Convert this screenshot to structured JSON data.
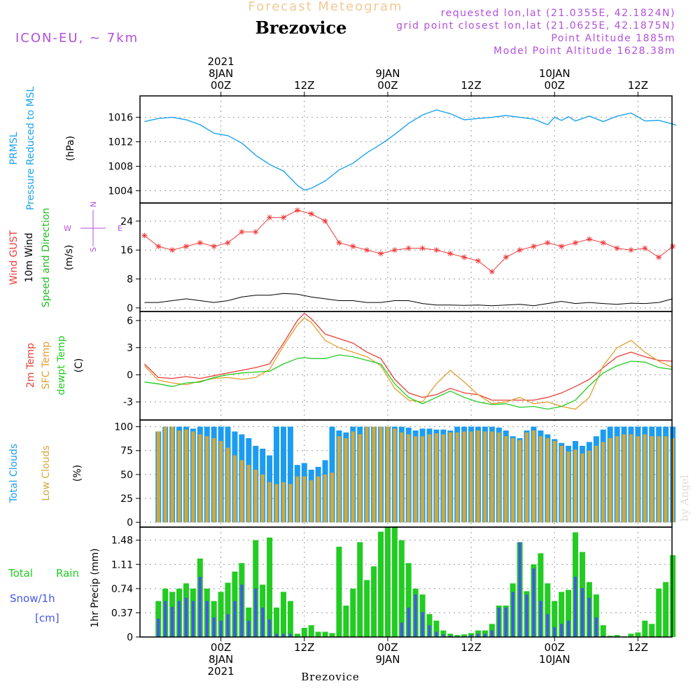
{
  "header": {
    "title": "Forecast Meteogram",
    "location": "Brezovice",
    "model": "ICON-EU, ~ 7km",
    "requested": "requested lon,lat (21.0355E, 42.1824N)",
    "grid_point": "grid point closest lon,lat (21.0625E, 42.1875N)",
    "point_altitude": "Point Altitude 1885m",
    "model_altitude": "Model Point Altitude 1628.38m",
    "footer": "Brezovice",
    "watermark": "by Angel"
  },
  "colors": {
    "pressure": "#1ca3ec",
    "gust": "#ee3b3b",
    "wind": "#000000",
    "direction_label": "#22bb22",
    "compass": "#b44fdc",
    "temp2m": "#e8403a",
    "sfc_temp": "#e0a030",
    "dewpoint": "#22cc22",
    "total_clouds": "#1c9cf0",
    "low_clouds": "#d4a838",
    "rain": "#22cc22",
    "snow": "#4455ee",
    "header_title": "#f2c994",
    "header_info": "#b44fdc"
  },
  "time_axis": {
    "top": [
      {
        "t": 0,
        "lines": [
          "2021",
          "8JAN",
          "00Z"
        ]
      },
      {
        "t": 12,
        "lines": [
          "12Z"
        ]
      },
      {
        "t": 24,
        "lines": [
          "9JAN",
          "00Z"
        ]
      },
      {
        "t": 36,
        "lines": [
          "12Z"
        ]
      },
      {
        "t": 48,
        "lines": [
          "10JAN",
          "00Z"
        ]
      },
      {
        "t": 60,
        "lines": [
          "12Z"
        ]
      }
    ],
    "bottom": [
      {
        "t": 0,
        "lines": [
          "00Z",
          "8JAN",
          "2021"
        ]
      },
      {
        "t": 12,
        "lines": [
          "12Z"
        ]
      },
      {
        "t": 24,
        "lines": [
          "00Z",
          "9JAN"
        ]
      },
      {
        "t": 36,
        "lines": [
          "12Z"
        ]
      },
      {
        "t": 48,
        "lines": [
          "00Z",
          "10JAN"
        ]
      },
      {
        "t": 60,
        "lines": [
          "12Z"
        ]
      }
    ]
  },
  "chart_data": [
    {
      "type": "line",
      "panel": "pressure",
      "labels": [
        "PRMSL",
        "Pressure Reduced to MSL",
        "(hPa)"
      ],
      "ylim": [
        1002,
        1019.5
      ],
      "yticks": [
        "1004",
        "1008",
        "1012",
        "1016"
      ],
      "x": [
        -11,
        -9,
        -7,
        -5,
        -3,
        -1,
        1,
        3,
        5,
        7,
        9,
        11,
        12,
        13,
        15,
        17,
        19,
        21,
        23,
        25,
        27,
        29,
        31,
        33,
        35,
        37,
        39,
        41,
        43,
        45,
        47,
        48,
        49,
        50,
        51,
        53,
        55,
        57,
        59,
        61,
        63,
        65,
        65.5
      ],
      "series": [
        {
          "values": [
            1015.3,
            1015.8,
            1016.0,
            1015.6,
            1014.8,
            1013.4,
            1013.0,
            1011.8,
            1009.8,
            1008.3,
            1007.2,
            1004.9,
            1004.1,
            1004.4,
            1005.6,
            1007.4,
            1008.5,
            1010.2,
            1011.6,
            1013.2,
            1015.0,
            1016.4,
            1017.2,
            1016.6,
            1015.6,
            1015.8,
            1016.0,
            1016.3,
            1016.0,
            1015.7,
            1014.8,
            1016.0,
            1015.5,
            1016.1,
            1015.4,
            1016.2,
            1015.3,
            1016.2,
            1016.7,
            1015.4,
            1015.5,
            1014.9,
            1014.7
          ]
        }
      ]
    },
    {
      "type": "line",
      "panel": "wind",
      "labels": [
        "Wind GUST",
        "10m Wind",
        "Speed and Direction",
        "(m/s)"
      ],
      "compass": [
        "N",
        "E",
        "S",
        "W"
      ],
      "ylim": [
        -1,
        29
      ],
      "yticks": [
        "0",
        "8",
        "16",
        "24"
      ],
      "x": [
        -11,
        -9,
        -7,
        -5,
        -3,
        -1,
        1,
        3,
        5,
        7,
        9,
        11,
        13,
        15,
        17,
        19,
        21,
        23,
        25,
        27,
        29,
        31,
        33,
        35,
        37,
        39,
        41,
        43,
        45,
        47,
        49,
        51,
        53,
        55,
        57,
        59,
        61,
        63,
        65
      ],
      "series": [
        {
          "name": "Wind GUST",
          "values": [
            20,
            17,
            16,
            17,
            18,
            17,
            18,
            21,
            21,
            25,
            25,
            27,
            26,
            24,
            18,
            17,
            16,
            15,
            16,
            16.5,
            16.5,
            16,
            15,
            14,
            13,
            10,
            14,
            16,
            17,
            18,
            17,
            18,
            19,
            18,
            16.5,
            16,
            16.5,
            14,
            17
          ]
        },
        {
          "name": "10m Wind",
          "values": [
            1.5,
            1.5,
            2,
            2.5,
            2,
            1.5,
            2,
            3,
            3.5,
            3.5,
            4,
            3.8,
            3,
            2.5,
            2,
            2,
            1.5,
            1.5,
            2,
            2,
            1.2,
            0.8,
            0.8,
            0.7,
            0.8,
            0.6,
            0.8,
            1,
            0.6,
            1.2,
            1.8,
            1.2,
            1.5,
            1.2,
            1,
            1.3,
            1.2,
            1.5,
            2.5
          ]
        }
      ]
    },
    {
      "type": "line",
      "panel": "temperature",
      "labels": [
        "2m Temp",
        "SFC Temp",
        "dewpt Temp",
        "(C)"
      ],
      "ylim": [
        -5,
        7
      ],
      "yticks": [
        "-3",
        "0",
        "3",
        "6"
      ],
      "x": [
        -11,
        -9,
        -7,
        -5,
        -3,
        -1,
        1,
        3,
        5,
        7,
        9,
        11,
        12,
        13,
        15,
        17,
        19,
        21,
        23,
        25,
        27,
        29,
        31,
        33,
        35,
        37,
        39,
        41,
        43,
        45,
        47,
        49,
        51,
        53,
        55,
        57,
        59,
        61,
        63,
        65
      ],
      "series": [
        {
          "name": "2m Temp",
          "values": [
            1.2,
            -0.3,
            -0.4,
            -0.2,
            -0.4,
            -0.1,
            0.2,
            0.5,
            0.8,
            1.2,
            3.5,
            6.0,
            6.8,
            6.2,
            4.5,
            4.0,
            3.5,
            2.5,
            1.8,
            -0.5,
            -2.0,
            -2.5,
            -2.2,
            -1.5,
            -2.0,
            -2.2,
            -2.8,
            -2.8,
            -2.8,
            -2.8,
            -2.5,
            -2.0,
            -1.3,
            -0.5,
            0.8,
            2.0,
            2.5,
            2.0,
            1.6,
            1.5
          ]
        },
        {
          "name": "SFC Temp",
          "values": [
            1.0,
            -0.6,
            -0.9,
            -1.1,
            -0.7,
            -0.4,
            -0.3,
            -0.5,
            -0.3,
            0.6,
            3.2,
            5.5,
            6.3,
            5.8,
            3.8,
            3.0,
            2.5,
            2.0,
            1.0,
            -1.5,
            -2.8,
            -3.0,
            -1.0,
            0.5,
            -0.8,
            -2.2,
            -3.2,
            -3.0,
            -2.5,
            -3.2,
            -3.0,
            -3.5,
            -3.8,
            -2.5,
            1.0,
            3.0,
            3.8,
            2.5,
            1.5,
            0.8
          ]
        },
        {
          "name": "dewpt Temp",
          "values": [
            -0.8,
            -1.0,
            -1.3,
            -0.9,
            -0.8,
            -0.3,
            0.0,
            0.2,
            0.3,
            0.4,
            1.2,
            1.8,
            1.9,
            1.8,
            1.8,
            2.2,
            2.0,
            1.6,
            1.2,
            -1.0,
            -2.5,
            -3.2,
            -2.5,
            -1.8,
            -2.5,
            -3.0,
            -3.3,
            -3.2,
            -3.6,
            -3.5,
            -3.8,
            -3.5,
            -2.8,
            -1.2,
            0.2,
            1.0,
            1.5,
            1.4,
            0.8,
            0.6
          ]
        }
      ]
    },
    {
      "type": "bar",
      "panel": "clouds",
      "labels": [
        "Total Clouds",
        "Low Clouds",
        "(%)"
      ],
      "ylim": [
        -5,
        107
      ],
      "yticks": [
        "0",
        "25",
        "50",
        "75",
        "100"
      ],
      "x": [
        -9,
        -8,
        -7,
        -6,
        -5,
        -4,
        -3,
        -2,
        -1,
        0,
        1,
        2,
        3,
        4,
        5,
        6,
        7,
        8,
        9,
        10,
        11,
        12,
        13,
        14,
        15,
        16,
        17,
        18,
        19,
        20,
        21,
        22,
        23,
        24,
        25,
        26,
        27,
        28,
        29,
        30,
        31,
        32,
        33,
        34,
        35,
        36,
        37,
        38,
        39,
        40,
        41,
        42,
        43,
        44,
        45,
        46,
        47,
        48,
        49,
        50,
        51,
        52,
        53,
        54,
        55,
        56,
        57,
        58,
        59,
        60,
        61,
        62,
        63,
        64,
        65
      ],
      "series": [
        {
          "name": "Total Clouds",
          "values": [
            95,
            100,
            100,
            100,
            100,
            98,
            100,
            100,
            100,
            100,
            100,
            95,
            92,
            88,
            80,
            77,
            70,
            100,
            100,
            100,
            60,
            62,
            55,
            58,
            65,
            100,
            96,
            94,
            100,
            100,
            100,
            100,
            100,
            100,
            100,
            100,
            99,
            96,
            98,
            98,
            97,
            97,
            96,
            100,
            100,
            100,
            100,
            100,
            100,
            99,
            96,
            90,
            88,
            96,
            100,
            96,
            92,
            87,
            83,
            80,
            85,
            80,
            84,
            90,
            97,
            100,
            100,
            100,
            100,
            100,
            100,
            100,
            100,
            100,
            100
          ]
        },
        {
          "name": "Low Clouds",
          "values": [
            95,
            100,
            100,
            96,
            97,
            95,
            92,
            90,
            88,
            85,
            78,
            70,
            65,
            60,
            55,
            50,
            42,
            40,
            42,
            40,
            48,
            48,
            44,
            48,
            50,
            52,
            90,
            88,
            95,
            92,
            100,
            100,
            100,
            100,
            98,
            94,
            92,
            90,
            90,
            92,
            93,
            92,
            94,
            94,
            95,
            95,
            96,
            95,
            95,
            94,
            90,
            88,
            86,
            94,
            96,
            90,
            88,
            85,
            80,
            74,
            76,
            72,
            75,
            80,
            84,
            88,
            90,
            92,
            92,
            90,
            92,
            90,
            90,
            90,
            88
          ]
        }
      ]
    },
    {
      "type": "bar",
      "panel": "precipitation",
      "labels": [
        "Total",
        "Rain",
        "Snow/1h",
        "[cm]",
        "1hr Precip (mm)"
      ],
      "ylim": [
        0,
        1.68
      ],
      "yticks": [
        "0",
        "0.37",
        "0.74",
        "1.11",
        "1.48"
      ],
      "x": [
        -9,
        -8,
        -7,
        -6,
        -5,
        -4,
        -3,
        -2,
        -1,
        0,
        1,
        2,
        3,
        4,
        5,
        6,
        7,
        8,
        9,
        10,
        11,
        12,
        13,
        14,
        15,
        16,
        17,
        18,
        19,
        20,
        21,
        22,
        23,
        24,
        25,
        26,
        27,
        28,
        29,
        30,
        31,
        32,
        33,
        34,
        35,
        36,
        37,
        38,
        39,
        40,
        41,
        42,
        43,
        44,
        45,
        46,
        47,
        48,
        49,
        50,
        51,
        52,
        53,
        54,
        55,
        56,
        57,
        58,
        59,
        60,
        61,
        62,
        63,
        64,
        65
      ],
      "series": [
        {
          "name": "Total",
          "values": [
            0.55,
            0.74,
            0.69,
            0.74,
            0.82,
            0.74,
            1.2,
            0.74,
            0.55,
            0.69,
            0.83,
            1.0,
            1.13,
            0.45,
            1.48,
            0.8,
            1.52,
            0.45,
            0.69,
            0.55,
            0.05,
            0.14,
            0.18,
            0.08,
            0.08,
            0.06,
            1.38,
            0.48,
            0.74,
            1.45,
            0.87,
            1.08,
            1.61,
            1.68,
            1.69,
            1.48,
            1.13,
            0.74,
            0.65,
            0.35,
            0.25,
            0.1,
            0.05,
            0.03,
            0.04,
            0.06,
            0.1,
            0.1,
            0.2,
            0.48,
            0.48,
            0.82,
            1.45,
            0.7,
            1.11,
            1.28,
            0.82,
            0.55,
            0.69,
            0.72,
            1.6,
            1.3,
            0.84,
            0.65,
            0.18,
            0.02,
            0.03,
            0.01,
            0.05,
            0.07,
            0.25,
            0.2,
            0.74,
            0.84,
            1.25
          ]
        },
        {
          "name": "Snow/1h",
          "values": [
            0.28,
            0.55,
            0.46,
            0.55,
            0.6,
            0.55,
            0.92,
            0.55,
            0.3,
            0.25,
            0.35,
            0.55,
            0.8,
            0.25,
            0.74,
            0.45,
            0.27,
            0.05,
            0.05,
            0.05,
            0.0,
            0.0,
            0.0,
            0.0,
            0.0,
            0.0,
            0.0,
            0.0,
            0.0,
            0.0,
            0.0,
            0.0,
            0.0,
            0.0,
            0.0,
            0.22,
            0.45,
            0.65,
            0.38,
            0.18,
            0.08,
            0.04,
            0.02,
            0.01,
            0.01,
            0.03,
            0.05,
            0.05,
            0.1,
            0.45,
            0.45,
            0.69,
            1.45,
            0.65,
            1.05,
            0.55,
            0.35,
            0.15,
            0.2,
            0.25,
            0.92,
            0.75,
            0.6,
            0.3,
            0.02,
            0.0,
            0.0,
            0.0,
            0.0,
            0.0,
            0.0,
            0.0,
            0.0,
            0.0,
            0.0
          ]
        }
      ]
    }
  ]
}
